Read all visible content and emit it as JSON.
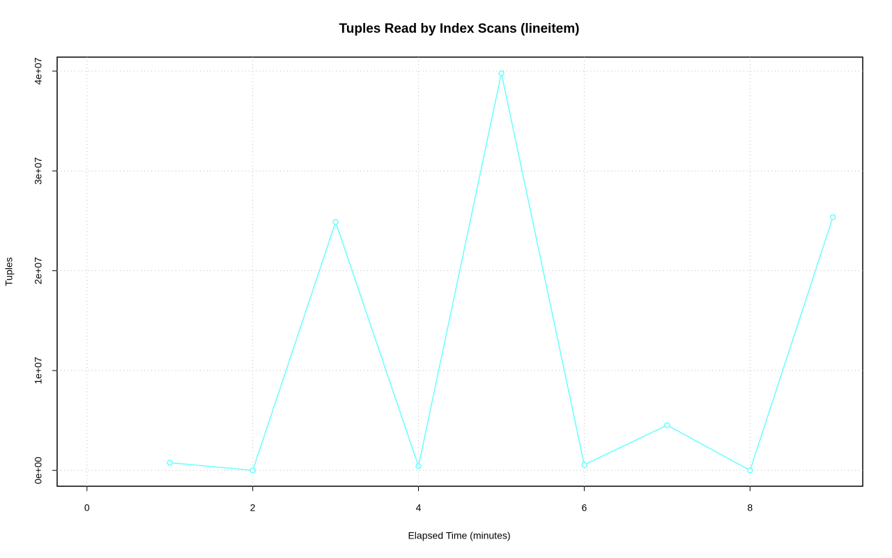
{
  "chart_data": {
    "type": "line",
    "title": "Tuples Read by Index Scans (lineitem)",
    "x_label": "Elapsed Time (minutes)",
    "y_label": "Tuples",
    "x": [
      1,
      2,
      3,
      4,
      5,
      6,
      7,
      8,
      9
    ],
    "values": [
      770000,
      0,
      24880000,
      420000,
      39790000,
      560000,
      4530000,
      0,
      25370000
    ],
    "color": "#66ffff",
    "xlim": [
      -0.36,
      9.36
    ],
    "ylim": [
      -1590000,
      41400000
    ],
    "xticks": [
      0,
      2,
      4,
      6,
      8
    ],
    "yticks": [
      {
        "value": 0,
        "label": "0e+00"
      },
      {
        "value": 10000000,
        "label": "1e+07"
      },
      {
        "value": 20000000,
        "label": "2e+07"
      },
      {
        "value": 30000000,
        "label": "3e+07"
      },
      {
        "value": 40000000,
        "label": "4e+07"
      }
    ],
    "grid": true
  }
}
